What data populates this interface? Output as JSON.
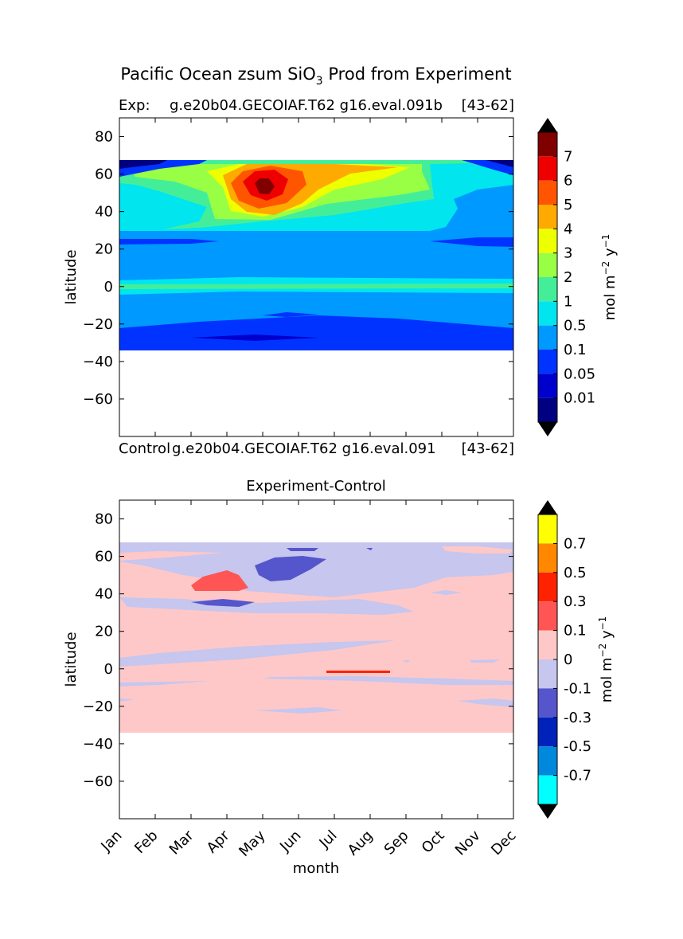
{
  "figure": {
    "title_main": "Pacific Ocean zsum SiO",
    "title_sub": "3",
    "title_end": " Prod from Experiment"
  },
  "panel1": {
    "exp_prefix": "Exp:",
    "exp_name": "g.e20b04.GECOIAF.T62 g16.eval.091b",
    "exp_years": "[43-62]",
    "ctrl_prefix": "Control",
    "ctrl_name": "g.e20b04.GECOIAF.T62 g16.eval.091",
    "ctrl_years": "[43-62]"
  },
  "panel2": {
    "title": "Experiment-Control"
  },
  "axes": {
    "ylabel": "latitude",
    "xlabel": "month",
    "yticks": [
      80,
      60,
      40,
      20,
      0,
      -20,
      -40,
      -60
    ],
    "months": [
      "Jan",
      "Feb",
      "Mar",
      "Apr",
      "May",
      "Jun",
      "Jul",
      "Aug",
      "Sep",
      "Oct",
      "Nov",
      "Dec"
    ]
  },
  "chart_data": [
    {
      "type": "heatmap",
      "title": "Exp:    g.e20b04.GECOIAF.T62 g16.eval.091b [43-62]",
      "xlabel": "",
      "ylabel": "latitude",
      "xlim": [
        1,
        12
      ],
      "ylim": [
        -80,
        90
      ],
      "yticks": [
        80,
        60,
        40,
        20,
        0,
        -20,
        -40,
        -60
      ],
      "data_lat_range": [
        -34,
        67
      ],
      "colorbar": {
        "label": "mol m^-2 y^-1",
        "levels": [
          "0.01",
          "0.05",
          "0.1",
          "0.5",
          "1",
          "2",
          "3",
          "4",
          "5",
          "6",
          "7"
        ],
        "colors": [
          "#000080",
          "#0000cd",
          "#0033ff",
          "#0099ff",
          "#00e5ee",
          "#44ee99",
          "#99ff44",
          "#eeff00",
          "#ffaa00",
          "#ff5500",
          "#ee0000",
          "#800000"
        ],
        "extend": "both"
      },
      "peak": {
        "month": "May",
        "lat": 53,
        "value": 7
      }
    },
    {
      "type": "heatmap",
      "title": "Experiment-Control",
      "xlabel": "month",
      "ylabel": "latitude",
      "xlim": [
        1,
        12
      ],
      "ylim": [
        -80,
        90
      ],
      "yticks": [
        80,
        60,
        40,
        20,
        0,
        -20,
        -40,
        -60
      ],
      "data_lat_range": [
        -34,
        67
      ],
      "colorbar": {
        "label": "mol m^-2 y^-1",
        "levels": [
          "0.7",
          "0.5",
          "0.3",
          "0.1",
          "0",
          "-0.1",
          "-0.3",
          "-0.5",
          "-0.7"
        ],
        "colors": [
          "#ffff00",
          "#ff8800",
          "#ff2200",
          "#ff5555",
          "#ffc8c8",
          "#c6c6ee",
          "#5555cc",
          "#0022bb",
          "#0088dd",
          "#00ffff"
        ],
        "extend": "both"
      }
    }
  ],
  "units": {
    "mol": "mol m",
    "sup1": "−2",
    "y": " y",
    "sup2": "−1"
  }
}
